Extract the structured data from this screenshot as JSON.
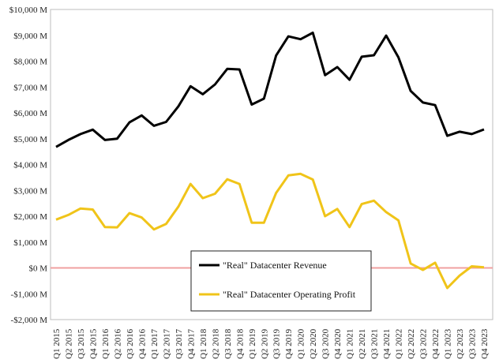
{
  "chart_data": {
    "type": "line",
    "title": "",
    "xlabel": "",
    "ylabel": "",
    "ylim": [
      -2000,
      10000
    ],
    "y_ticks": [
      -2000,
      -1000,
      0,
      1000,
      2000,
      3000,
      4000,
      5000,
      6000,
      7000,
      8000,
      9000,
      10000
    ],
    "y_tick_labels": [
      "-$2,000 M",
      "-$1,000 M",
      "$0 M",
      "$1,000 M",
      "$2,000 M",
      "$3,000 M",
      "$4,000 M",
      "$5,000 M",
      "$6,000 M",
      "$7,000 M",
      "$8,000 M",
      "$9,000 M",
      "$10,000 M"
    ],
    "categories": [
      "Q1 2015",
      "Q2 2015",
      "Q3 2015",
      "Q4 2015",
      "Q1 2016",
      "Q2 2016",
      "Q3 2016",
      "Q4 2016",
      "Q1 2017",
      "Q2 2017",
      "Q3 2017",
      "Q4 2017",
      "Q1 2018",
      "Q2 2018",
      "Q3 2018",
      "Q4 2018",
      "Q1 2019",
      "Q2 2019",
      "Q3 2019",
      "Q4 2019",
      "Q1 2020",
      "Q2 2020",
      "Q3 2020",
      "Q4 2020",
      "Q1 2021",
      "Q2 2021",
      "Q3 2021",
      "Q4 2021",
      "Q1 2022",
      "Q2 2022",
      "Q3 2022",
      "Q4 2022",
      "Q1 2023",
      "Q2 2023",
      "Q3 2023",
      "Q4 2023"
    ],
    "grid": false,
    "zero_line": true,
    "zero_line_color": "#f0a0a0",
    "legend_placement": "bottom-center",
    "series": [
      {
        "name": "\"Real\" Datacenter Revenue",
        "color": "#000000",
        "values": [
          4680,
          4950,
          5180,
          5350,
          4950,
          5000,
          5630,
          5900,
          5500,
          5650,
          6250,
          7030,
          6720,
          7100,
          7700,
          7680,
          6320,
          6550,
          8220,
          8960,
          8850,
          9100,
          7460,
          7770,
          7280,
          8170,
          8230,
          8990,
          8150,
          6850,
          6400,
          6300,
          5110,
          5270,
          5180,
          5360
        ]
      },
      {
        "name": "\"Real\" Datacenter Operating Profit",
        "color": "#f0c419",
        "values": [
          1870,
          2050,
          2300,
          2260,
          1580,
          1570,
          2120,
          1950,
          1490,
          1700,
          2370,
          3250,
          2700,
          2870,
          3430,
          3250,
          1750,
          1750,
          2900,
          3580,
          3640,
          3420,
          2000,
          2280,
          1580,
          2470,
          2600,
          2160,
          1840,
          170,
          -80,
          200,
          -780,
          -300,
          60,
          20
        ]
      }
    ]
  }
}
